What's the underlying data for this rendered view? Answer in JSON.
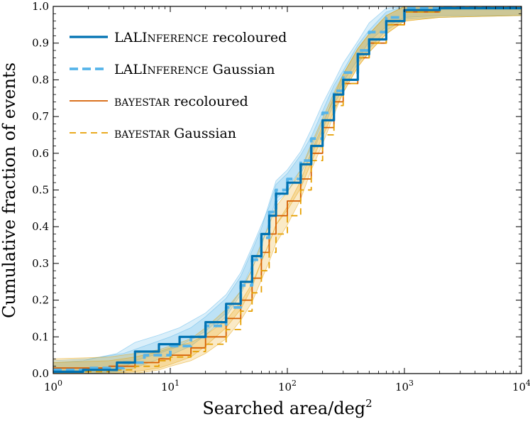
{
  "chart_data": {
    "type": "line",
    "xlabel": "Searched area/deg",
    "xlabel_sup": "2",
    "ylabel": "Cumulative fraction of events",
    "xscale": "log",
    "xlim": [
      1,
      10000
    ],
    "ylim": [
      0.0,
      1.0
    ],
    "xticks": [
      {
        "value": 1,
        "base": "10",
        "exp": "0"
      },
      {
        "value": 10,
        "base": "10",
        "exp": "1"
      },
      {
        "value": 100,
        "base": "10",
        "exp": "2"
      },
      {
        "value": 1000,
        "base": "10",
        "exp": "3"
      },
      {
        "value": 10000,
        "base": "10",
        "exp": "4"
      }
    ],
    "yticks": [
      "0.0",
      "0.1",
      "0.2",
      "0.3",
      "0.4",
      "0.5",
      "0.6",
      "0.7",
      "0.8",
      "0.9",
      "1.0"
    ],
    "grid": false,
    "legend_position": "top-left",
    "series": [
      {
        "name": "LALInference recoloured",
        "name_parts": [
          [
            "LALI",
            "big"
          ],
          [
            "NFERENCE",
            "sc"
          ],
          [
            " recoloured",
            "big"
          ]
        ],
        "color": "#0072b2",
        "dash": "none",
        "width": 3.2,
        "band_color": "#56b4e9",
        "x": [
          1,
          1.8,
          3.5,
          5,
          8,
          12,
          20,
          30,
          40,
          50,
          60,
          70,
          80,
          100,
          130,
          160,
          200,
          250,
          300,
          400,
          500,
          700,
          1000,
          2000,
          10000
        ],
        "y": [
          0.005,
          0.01,
          0.03,
          0.06,
          0.08,
          0.1,
          0.14,
          0.19,
          0.25,
          0.32,
          0.38,
          0.43,
          0.49,
          0.52,
          0.57,
          0.62,
          0.69,
          0.76,
          0.8,
          0.87,
          0.91,
          0.96,
          0.99,
          0.995,
          1.0
        ]
      },
      {
        "name": "LALInference Gaussian",
        "name_parts": [
          [
            "LALI",
            "big"
          ],
          [
            "NFERENCE",
            "sc"
          ],
          [
            " Gaussian",
            "big"
          ]
        ],
        "color": "#56b4e9",
        "dash": "12,6",
        "width": 3.8,
        "band_color": "#56b4e9",
        "x": [
          1,
          2,
          4,
          6,
          10,
          15,
          20,
          30,
          40,
          50,
          60,
          70,
          80,
          100,
          130,
          160,
          200,
          250,
          300,
          400,
          500,
          700,
          1000,
          2000,
          10000
        ],
        "y": [
          0.01,
          0.015,
          0.03,
          0.05,
          0.075,
          0.1,
          0.13,
          0.18,
          0.24,
          0.31,
          0.37,
          0.44,
          0.5,
          0.53,
          0.58,
          0.64,
          0.71,
          0.77,
          0.82,
          0.88,
          0.93,
          0.97,
          0.995,
          1.0,
          1.0
        ]
      },
      {
        "name": "bayestar recoloured",
        "name_parts": [
          [
            "BAYESTAR",
            "sc"
          ],
          [
            " recoloured",
            "big"
          ]
        ],
        "color": "#d55e00",
        "dash": "none",
        "width": 1.8,
        "band_color": "#e69f00",
        "x": [
          1,
          3,
          5,
          8,
          10,
          15,
          20,
          30,
          40,
          50,
          60,
          70,
          80,
          100,
          130,
          160,
          200,
          250,
          300,
          400,
          500,
          700,
          1000,
          2000,
          10000
        ],
        "y": [
          0.015,
          0.02,
          0.03,
          0.04,
          0.05,
          0.07,
          0.1,
          0.15,
          0.2,
          0.26,
          0.33,
          0.38,
          0.43,
          0.47,
          0.53,
          0.6,
          0.67,
          0.74,
          0.79,
          0.86,
          0.9,
          0.95,
          0.985,
          0.995,
          1.0
        ]
      },
      {
        "name": "bayestar Gaussian",
        "name_parts": [
          [
            "BAYESTAR",
            "sc"
          ],
          [
            " Gaussian",
            "big"
          ]
        ],
        "color": "#e69f00",
        "dash": "9,6",
        "width": 1.8,
        "band_color": "#e69f00",
        "x": [
          1,
          3,
          5,
          8,
          10,
          15,
          20,
          30,
          40,
          50,
          60,
          70,
          80,
          100,
          130,
          160,
          200,
          250,
          300,
          400,
          500,
          700,
          1000,
          2000,
          10000
        ],
        "y": [
          0.005,
          0.01,
          0.02,
          0.035,
          0.045,
          0.06,
          0.08,
          0.12,
          0.17,
          0.22,
          0.28,
          0.33,
          0.38,
          0.43,
          0.5,
          0.58,
          0.65,
          0.73,
          0.79,
          0.86,
          0.9,
          0.95,
          0.985,
          0.995,
          1.0
        ]
      }
    ]
  }
}
